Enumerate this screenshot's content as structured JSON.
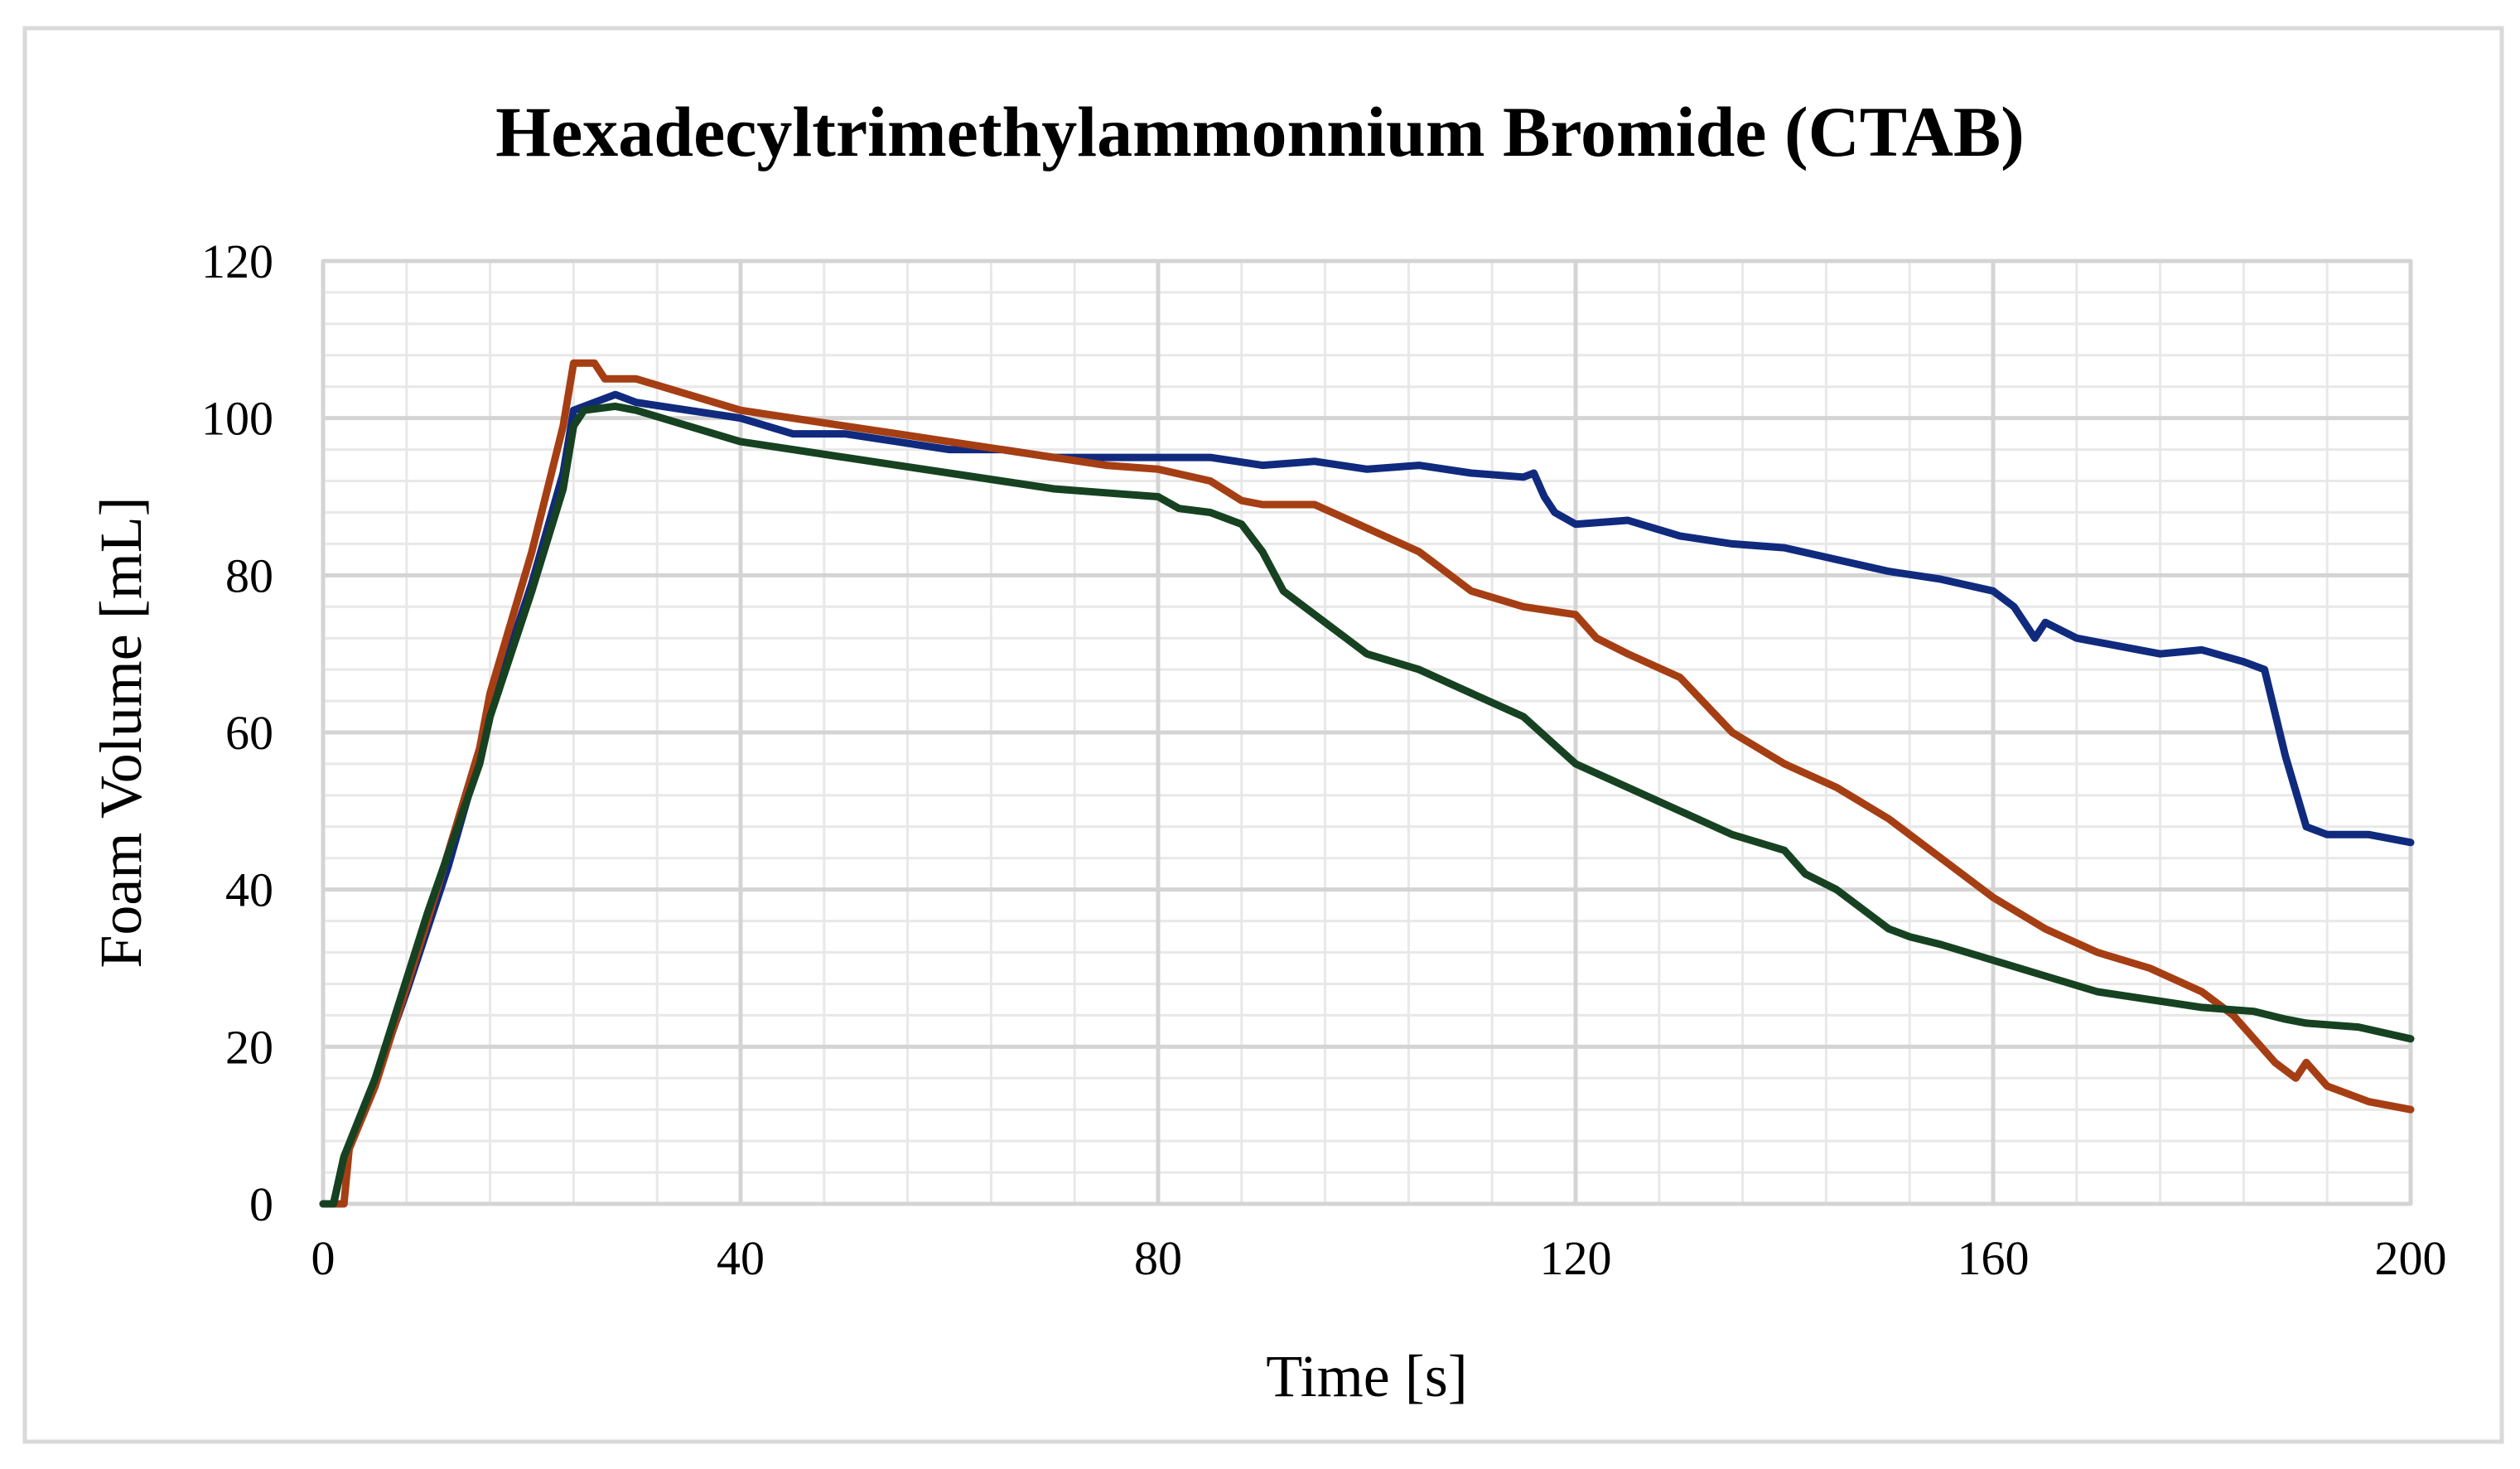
{
  "chart_data": {
    "type": "line",
    "title": "Hexadecyltrimethylammonnium  Bromide (CTAB)",
    "xlabel": "Time [s]",
    "ylabel": "Foam Volume [mL]",
    "xlim": [
      0,
      200
    ],
    "ylim": [
      0,
      120
    ],
    "x_ticks": [
      0,
      40,
      80,
      120,
      160,
      200
    ],
    "y_ticks": [
      0,
      20,
      40,
      60,
      80,
      100,
      120
    ],
    "x_tick_labels": [
      "0",
      "40",
      "80",
      "120",
      "160",
      "200"
    ],
    "y_tick_labels": [
      "0",
      "20",
      "40",
      "60",
      "80",
      "100",
      "120"
    ],
    "x_minor_step": 8,
    "y_minor_step": 4,
    "grid": true,
    "legend": "none",
    "series": [
      {
        "name": "blue",
        "color": "#102a7e",
        "points": [
          [
            0,
            0
          ],
          [
            1,
            0
          ],
          [
            2,
            6
          ],
          [
            4,
            12
          ],
          [
            8,
            27
          ],
          [
            12,
            43
          ],
          [
            15,
            57
          ],
          [
            16,
            63
          ],
          [
            20,
            79
          ],
          [
            23,
            93
          ],
          [
            24,
            101
          ],
          [
            26,
            102
          ],
          [
            28,
            103
          ],
          [
            30,
            102
          ],
          [
            35,
            101
          ],
          [
            40,
            100
          ],
          [
            45,
            98
          ],
          [
            50,
            98
          ],
          [
            55,
            97
          ],
          [
            60,
            96
          ],
          [
            65,
            96
          ],
          [
            70,
            95
          ],
          [
            75,
            95
          ],
          [
            80,
            95
          ],
          [
            85,
            95
          ],
          [
            90,
            94
          ],
          [
            95,
            94.5
          ],
          [
            100,
            93.5
          ],
          [
            105,
            94
          ],
          [
            110,
            93
          ],
          [
            115,
            92.5
          ],
          [
            116,
            93
          ],
          [
            117,
            90
          ],
          [
            118,
            88
          ],
          [
            120,
            86.5
          ],
          [
            125,
            87
          ],
          [
            130,
            85
          ],
          [
            135,
            84
          ],
          [
            140,
            83.5
          ],
          [
            145,
            82
          ],
          [
            150,
            80.5
          ],
          [
            155,
            79.5
          ],
          [
            160,
            78
          ],
          [
            162,
            76
          ],
          [
            164,
            72
          ],
          [
            165,
            74
          ],
          [
            168,
            72
          ],
          [
            172,
            71
          ],
          [
            176,
            70
          ],
          [
            180,
            70.5
          ],
          [
            184,
            69
          ],
          [
            186,
            68
          ],
          [
            188,
            57
          ],
          [
            190,
            48
          ],
          [
            192,
            47
          ],
          [
            196,
            47
          ],
          [
            200,
            46
          ]
        ]
      },
      {
        "name": "orange",
        "color": "#a63e14",
        "points": [
          [
            0,
            0
          ],
          [
            1.5,
            0
          ],
          [
            2,
            0
          ],
          [
            2.5,
            7
          ],
          [
            5,
            15
          ],
          [
            10,
            36
          ],
          [
            15,
            58
          ],
          [
            16,
            65
          ],
          [
            20,
            83
          ],
          [
            23,
            99
          ],
          [
            24,
            107
          ],
          [
            26,
            107
          ],
          [
            27,
            105
          ],
          [
            30,
            105
          ],
          [
            35,
            103
          ],
          [
            40,
            101
          ],
          [
            45,
            100
          ],
          [
            50,
            99
          ],
          [
            55,
            98
          ],
          [
            60,
            97
          ],
          [
            65,
            96
          ],
          [
            70,
            95
          ],
          [
            75,
            94
          ],
          [
            80,
            93.5
          ],
          [
            85,
            92
          ],
          [
            88,
            89.5
          ],
          [
            90,
            89
          ],
          [
            95,
            89
          ],
          [
            100,
            86
          ],
          [
            105,
            83
          ],
          [
            110,
            78
          ],
          [
            115,
            76
          ],
          [
            120,
            75
          ],
          [
            122,
            72
          ],
          [
            125,
            70
          ],
          [
            130,
            67
          ],
          [
            135,
            60
          ],
          [
            140,
            56
          ],
          [
            145,
            53
          ],
          [
            150,
            49
          ],
          [
            155,
            44
          ],
          [
            160,
            39
          ],
          [
            165,
            35
          ],
          [
            170,
            32
          ],
          [
            175,
            30
          ],
          [
            180,
            27
          ],
          [
            183,
            24
          ],
          [
            185,
            21
          ],
          [
            187,
            18
          ],
          [
            189,
            16
          ],
          [
            190,
            18
          ],
          [
            192,
            15
          ],
          [
            196,
            13
          ],
          [
            200,
            12
          ]
        ]
      },
      {
        "name": "green",
        "color": "#164221",
        "points": [
          [
            0,
            0
          ],
          [
            1,
            0
          ],
          [
            2,
            6
          ],
          [
            5,
            16
          ],
          [
            10,
            37
          ],
          [
            15,
            56
          ],
          [
            16,
            62
          ],
          [
            20,
            78
          ],
          [
            23,
            91
          ],
          [
            24,
            99
          ],
          [
            25,
            101
          ],
          [
            28,
            101.5
          ],
          [
            30,
            101
          ],
          [
            35,
            99
          ],
          [
            40,
            97
          ],
          [
            45,
            96
          ],
          [
            50,
            95
          ],
          [
            55,
            94
          ],
          [
            60,
            93
          ],
          [
            65,
            92
          ],
          [
            70,
            91
          ],
          [
            75,
            90.5
          ],
          [
            80,
            90
          ],
          [
            82,
            88.5
          ],
          [
            85,
            88
          ],
          [
            88,
            86.5
          ],
          [
            90,
            83
          ],
          [
            92,
            78
          ],
          [
            95,
            75
          ],
          [
            98,
            72
          ],
          [
            100,
            70
          ],
          [
            105,
            68
          ],
          [
            110,
            65
          ],
          [
            115,
            62
          ],
          [
            120,
            56
          ],
          [
            125,
            53
          ],
          [
            130,
            50
          ],
          [
            135,
            47
          ],
          [
            140,
            45
          ],
          [
            142,
            42
          ],
          [
            145,
            40
          ],
          [
            150,
            35
          ],
          [
            152,
            34
          ],
          [
            155,
            33
          ],
          [
            160,
            31
          ],
          [
            165,
            29
          ],
          [
            170,
            27
          ],
          [
            175,
            26
          ],
          [
            180,
            25
          ],
          [
            185,
            24.5
          ],
          [
            188,
            23.5
          ],
          [
            190,
            23
          ],
          [
            195,
            22.5
          ],
          [
            200,
            21
          ]
        ]
      }
    ]
  }
}
